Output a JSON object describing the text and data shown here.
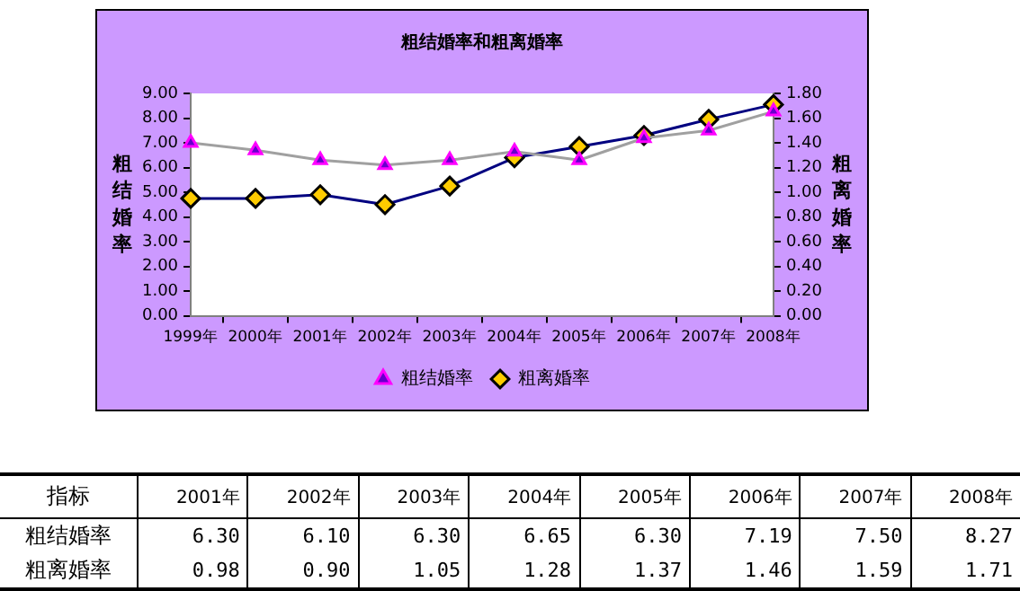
{
  "chart_data": [
    {
      "type": "line",
      "title": "粗结婚率和粗离婚率",
      "ylabel": "粗结婚率",
      "y2label": "粗离婚率",
      "categories": [
        "1999年",
        "2000年",
        "2001年",
        "2002年",
        "2003年",
        "2004年",
        "2005年",
        "2006年",
        "2007年",
        "2008年"
      ],
      "series": [
        {
          "name": "粗结婚率",
          "color": "#a0a0a0",
          "marker": "triangle",
          "values": [
            7.0,
            6.7,
            6.3,
            6.1,
            6.3,
            6.65,
            6.3,
            7.19,
            7.5,
            8.27
          ]
        },
        {
          "name": "粗离婚率",
          "color": "#000080",
          "marker": "diamond",
          "axis": "y2",
          "values": [
            0.95,
            0.95,
            0.98,
            0.9,
            1.05,
            1.28,
            1.37,
            1.46,
            1.59,
            1.71
          ]
        }
      ],
      "ylim": [
        0,
        9
      ],
      "yticks": [
        {
          "value": 0,
          "label": "0.00"
        },
        {
          "value": 1,
          "label": "1.00"
        },
        {
          "value": 2,
          "label": "2.00"
        },
        {
          "value": 3,
          "label": "3.00"
        },
        {
          "value": 4,
          "label": "4.00"
        },
        {
          "value": 5,
          "label": "5.00"
        },
        {
          "value": 6,
          "label": "6.00"
        },
        {
          "value": 7,
          "label": "7.00"
        },
        {
          "value": 8,
          "label": "8.00"
        },
        {
          "value": 9,
          "label": "9.00"
        }
      ],
      "y2lim": [
        0,
        1.8
      ],
      "y2ticks": [
        {
          "value": 0,
          "label": "0.00"
        },
        {
          "value": 0.2,
          "label": "0.20"
        },
        {
          "value": 0.4,
          "label": "0.40"
        },
        {
          "value": 0.6,
          "label": "0.60"
        },
        {
          "value": 0.8,
          "label": "0.80"
        },
        {
          "value": 1.0,
          "label": "1.00"
        },
        {
          "value": 1.2,
          "label": "1.20"
        },
        {
          "value": 1.4,
          "label": "1.40"
        },
        {
          "value": 1.6,
          "label": "1.60"
        },
        {
          "value": 1.8,
          "label": "1.80"
        }
      ],
      "legend": "bottom",
      "grid": false
    },
    {
      "type": "heatmap",
      "ylabel": "指标",
      "categories": [
        "2001年",
        "2002年",
        "2003年",
        "2004年",
        "2005年",
        "2006年",
        "2007年",
        "2008年"
      ],
      "y_categories": [
        "粗结婚率",
        "粗离婚率"
      ],
      "cells": [
        [
          6.3,
          6.1,
          6.3,
          6.65,
          6.3,
          7.19,
          7.5,
          8.27
        ],
        [
          0.98,
          0.9,
          1.05,
          1.28,
          1.37,
          1.46,
          1.59,
          1.71
        ]
      ],
      "cell_labels": [
        [
          "6.30",
          "6.10",
          "6.30",
          "6.65",
          "6.30",
          "7.19",
          "7.50",
          "8.27"
        ],
        [
          "0.98",
          "0.90",
          "1.05",
          "1.28",
          "1.37",
          "1.46",
          "1.59",
          "1.71"
        ]
      ]
    }
  ]
}
